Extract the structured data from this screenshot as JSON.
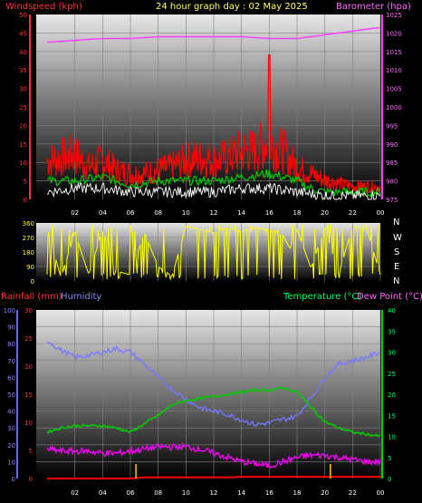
{
  "header": {
    "left_label": "Windspeed (kph)",
    "center_title": "24 hour graph day : 02 May 2025",
    "right_label": "Barometer (hpa)"
  },
  "compass": [
    "N",
    "W",
    "S",
    "E",
    "N"
  ],
  "bottom_header": {
    "rainfall_label": "Rainfall (mm)",
    "humidity_label": "Humidity",
    "temperature_label": "Temperature (°C)",
    "dewpoint_label": "Dew Point (°C)"
  },
  "colors": {
    "wind": "#ff0000",
    "gust_peak": "#ff0000",
    "wind_avg": "#00cc00",
    "wind_low": "#ffffff",
    "barometer": "#ff40ff",
    "direction": "#ffff00",
    "humidity": "#7777ff",
    "temperature": "#00cc00",
    "dewpoint": "#ff00ff",
    "rain": "#ff0000",
    "rain_rate": "#ffcc00",
    "header_red": "#ff3333",
    "header_yellow": "#ffff66",
    "header_magenta": "#ff66ff",
    "humidity_blue": "#8888ff",
    "temp_green": "#00ff66"
  },
  "chart_data": [
    {
      "type": "line",
      "x_ticks": [
        "02",
        "04",
        "06",
        "08",
        "10",
        "12",
        "14",
        "16",
        "18",
        "20",
        "22",
        "00"
      ],
      "ylim_left": [
        0,
        50
      ],
      "yticks_left": [
        0,
        5,
        10,
        15,
        20,
        25,
        30,
        35,
        40,
        45,
        50
      ],
      "ylim_right": [
        975,
        1025
      ],
      "yticks_right": [
        975,
        980,
        985,
        990,
        995,
        1000,
        1005,
        1010,
        1015,
        1020,
        1025
      ],
      "series": [
        {
          "x": [
            0,
            1,
            2,
            3,
            4,
            5,
            6,
            7,
            8,
            9,
            10,
            11,
            12,
            13,
            14,
            15,
            15.9,
            16,
            16.1,
            17,
            18,
            19,
            20,
            21,
            22,
            23,
            24
          ],
          "values": [
            12,
            13,
            14,
            10,
            12,
            9,
            8,
            8,
            9,
            10,
            12,
            13,
            12,
            13,
            15,
            15,
            18,
            39,
            17,
            15,
            10,
            8,
            6,
            5,
            4,
            4,
            4
          ]
        },
        {
          "x": [
            0,
            2,
            4,
            6,
            8,
            10,
            12,
            14,
            16,
            18,
            19,
            20,
            22,
            24
          ],
          "values": [
            5,
            5,
            6,
            4,
            5,
            5,
            5,
            6,
            7,
            5,
            3,
            2,
            2,
            2
          ]
        },
        {
          "x": [
            0,
            2,
            4,
            6,
            8,
            10,
            12,
            14,
            16,
            18,
            20,
            22,
            24
          ],
          "values": [
            2,
            3,
            3,
            2,
            2,
            2,
            2,
            3,
            3,
            2,
            1,
            1,
            1
          ]
        },
        {
          "x": [
            0,
            2,
            4,
            6,
            8,
            10,
            12,
            14,
            16,
            18,
            19,
            20,
            21,
            22,
            23,
            24
          ],
          "values": [
            1017.5,
            1018,
            1018.5,
            1018.5,
            1019,
            1019,
            1019,
            1019,
            1018.5,
            1018.5,
            1019,
            1019.5,
            1020,
            1020.5,
            1021,
            1021.5
          ]
        }
      ]
    },
    {
      "type": "scatter",
      "x_ticks": [
        "02",
        "04",
        "06",
        "08",
        "10",
        "12",
        "14",
        "16",
        "18",
        "20",
        "22",
        "00"
      ],
      "ylim": [
        0,
        360
      ],
      "yticks": [
        0,
        90,
        180,
        270,
        360
      ],
      "series": [
        {
          "x": [
            0,
            1,
            2,
            3,
            4,
            5,
            6,
            7,
            8,
            9,
            10,
            11,
            12,
            13,
            14,
            15,
            16,
            17,
            17.5,
            18,
            19,
            20,
            21,
            22,
            23,
            24
          ],
          "values": [
            330,
            20,
            300,
            40,
            320,
            60,
            40,
            300,
            90,
            30,
            340,
            320,
            300,
            330,
            310,
            330,
            320,
            280,
            200,
            320,
            80,
            330,
            40,
            340,
            330,
            40
          ]
        }
      ]
    },
    {
      "type": "line",
      "x_ticks": [
        "02",
        "04",
        "06",
        "08",
        "10",
        "12",
        "14",
        "16",
        "18",
        "20",
        "22",
        "00"
      ],
      "ylim_humidity": [
        0,
        100
      ],
      "yticks_humidity": [
        0,
        10,
        20,
        30,
        40,
        50,
        60,
        70,
        80,
        90,
        100
      ],
      "ylim_rain": [
        0,
        30
      ],
      "yticks_rain": [
        0,
        5,
        10,
        15,
        20,
        25,
        30
      ],
      "ylim_temp": [
        0,
        40
      ],
      "yticks_temp": [
        0,
        5,
        10,
        15,
        20,
        25,
        30,
        35,
        40
      ],
      "series": [
        {
          "x": [
            0,
            1,
            2,
            3,
            4,
            5,
            6,
            7,
            8,
            9,
            10,
            11,
            12,
            13,
            14,
            15,
            16,
            17,
            18,
            19,
            20,
            21,
            22,
            23,
            24
          ],
          "values": [
            82,
            76,
            72,
            73,
            75,
            77,
            75,
            68,
            60,
            53,
            47,
            42,
            40,
            38,
            35,
            32,
            33,
            35,
            37,
            48,
            60,
            68,
            70,
            72,
            75
          ]
        },
        {
          "x": [
            0,
            1,
            2,
            3,
            4,
            5,
            6,
            7,
            8,
            9,
            10,
            11,
            12,
            13,
            14,
            15,
            16,
            17,
            18,
            19,
            20,
            21,
            22,
            23,
            24
          ],
          "values": [
            11,
            12,
            12.5,
            12.5,
            12.5,
            12,
            11,
            13,
            15,
            17.5,
            18.5,
            19,
            19.5,
            20,
            20.5,
            21,
            21,
            21.5,
            20.5,
            17,
            13.5,
            12,
            11,
            10.5,
            10
          ]
        },
        {
          "x": [
            0,
            1,
            2,
            3,
            4,
            5,
            6,
            7,
            8,
            9,
            10,
            11,
            12,
            13,
            14,
            15,
            16,
            17,
            18,
            19,
            20,
            21,
            22,
            23,
            24
          ],
          "values": [
            7,
            6.5,
            6.5,
            6.5,
            6,
            6,
            6.5,
            7,
            7.5,
            7.5,
            7.5,
            7,
            6,
            5,
            4,
            3.5,
            3,
            4,
            5,
            5.5,
            5.5,
            5,
            4.5,
            4,
            4
          ]
        },
        {
          "x": [
            0,
            6,
            7,
            13,
            14,
            20,
            24
          ],
          "values": [
            0,
            0,
            0.2,
            0.2,
            0.3,
            0.3,
            0.3
          ]
        }
      ]
    }
  ]
}
